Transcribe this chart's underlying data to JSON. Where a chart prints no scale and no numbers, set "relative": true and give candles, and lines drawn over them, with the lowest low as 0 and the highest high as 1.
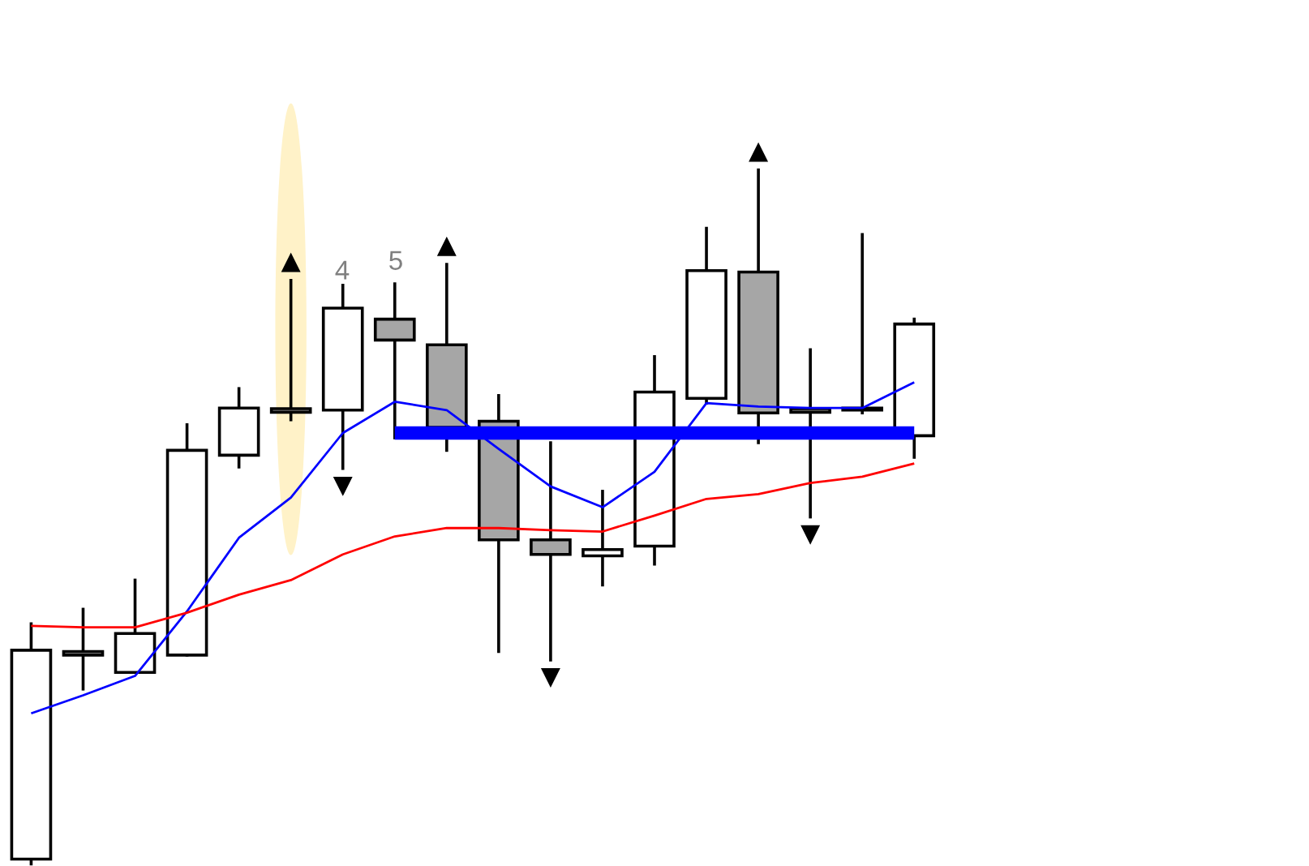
{
  "chart_data": {
    "type": "candlestick",
    "relative": true,
    "categories": [
      null,
      null,
      null,
      null,
      null,
      null,
      null,
      null,
      null,
      null,
      null,
      null,
      null,
      null,
      null,
      null,
      null,
      null
    ],
    "ohlc": [
      [
        0.007,
        0.346,
        0.0,
        0.308
      ],
      [
        0.306,
        0.367,
        0.252,
        0.301
      ],
      [
        0.276,
        0.409,
        0.276,
        0.332
      ],
      [
        0.301,
        0.633,
        0.301,
        0.596
      ],
      [
        0.589,
        0.685,
        0.572,
        0.657
      ],
      [
        0.656,
        0.841,
        0.64,
        0.651
      ],
      [
        0.654,
        0.834,
        0.57,
        0.801
      ],
      [
        0.785,
        0.836,
        0.614,
        0.755
      ],
      [
        0.748,
        0.864,
        0.596,
        0.629
      ],
      [
        0.638,
        0.675,
        0.306,
        0.467
      ],
      [
        0.467,
        0.607,
        0.294,
        0.446
      ],
      [
        0.444,
        0.537,
        0.402,
        0.453
      ],
      [
        0.458,
        0.731,
        0.432,
        0.68
      ],
      [
        0.671,
        0.916,
        0.664,
        0.855
      ],
      [
        0.853,
        1.0,
        0.607,
        0.65
      ],
      [
        0.656,
        0.741,
        0.5,
        0.651
      ],
      [
        0.657,
        0.907,
        0.65,
        0.654
      ],
      [
        0.617,
        0.785,
        0.586,
        0.778
      ]
    ],
    "series": [
      {
        "type": "line",
        "color": "#0000ff",
        "values": [
          0.217,
          0.243,
          0.271,
          0.364,
          0.47,
          0.528,
          0.621,
          0.666,
          0.654,
          0.598,
          0.544,
          0.514,
          0.565,
          0.664,
          0.659,
          0.657,
          0.657,
          0.694
        ]
      },
      {
        "type": "line",
        "color": "#ff0000",
        "values": [
          0.343,
          0.341,
          0.341,
          0.362,
          0.388,
          0.409,
          0.446,
          0.472,
          0.484,
          0.484,
          0.481,
          0.479,
          0.502,
          0.526,
          0.533,
          0.549,
          0.558,
          0.577
        ]
      },
      {
        "type": "line",
        "color": "#0000ff",
        "values": [
          null,
          null,
          null,
          null,
          null,
          null,
          null,
          0.621,
          0.621,
          0.621,
          0.621,
          0.621,
          0.621,
          0.621,
          0.621,
          0.621,
          0.621,
          0.621
        ]
      }
    ],
    "annotations": [
      "4",
      "5"
    ]
  }
}
